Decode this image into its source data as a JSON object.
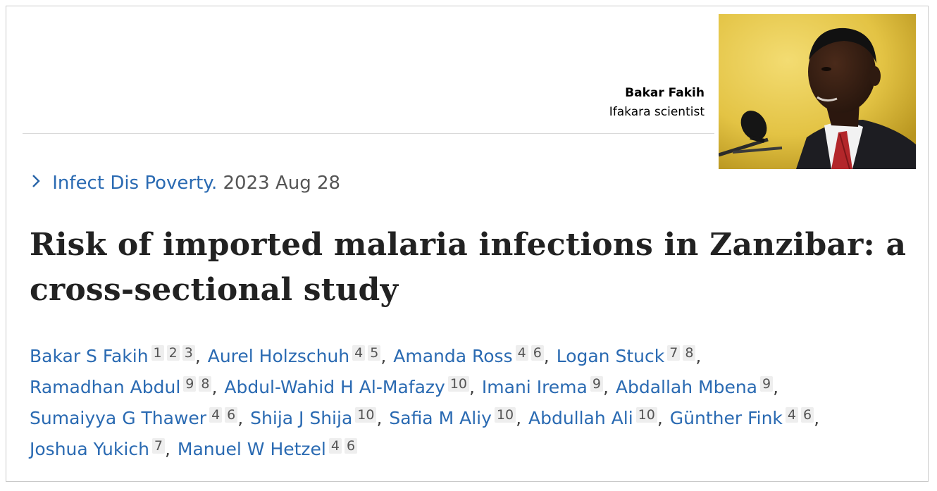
{
  "caption": {
    "name": "Bakar Fakih",
    "role": "Ifakara scientist"
  },
  "photo": {
    "icon": "portrait-photo-icon",
    "background_color": "#e7c94a"
  },
  "journal": {
    "name": "Infect Dis Poverty.",
    "date": "2023 Aug 28"
  },
  "title": {
    "line1": "Risk of imported malaria infections in Zanzibar: a",
    "line2": "cross-sectional study"
  },
  "authors": [
    {
      "name": "Bakar S Fakih",
      "affiliations": [
        "1",
        "2",
        "3"
      ]
    },
    {
      "name": "Aurel Holzschuh",
      "affiliations": [
        "4",
        "5"
      ]
    },
    {
      "name": "Amanda Ross",
      "affiliations": [
        "4",
        "6"
      ]
    },
    {
      "name": "Logan Stuck",
      "affiliations": [
        "7",
        "8"
      ]
    },
    {
      "name": "Ramadhan Abdul",
      "affiliations": [
        "9",
        "8"
      ]
    },
    {
      "name": "Abdul-Wahid H Al-Mafazy",
      "affiliations": [
        "10"
      ]
    },
    {
      "name": "Imani Irema",
      "affiliations": [
        "9"
      ]
    },
    {
      "name": "Abdallah Mbena",
      "affiliations": [
        "9"
      ]
    },
    {
      "name": "Sumaiyya G Thawer",
      "affiliations": [
        "4",
        "6"
      ]
    },
    {
      "name": "Shija J Shija",
      "affiliations": [
        "10"
      ]
    },
    {
      "name": "Safia M Aliy",
      "affiliations": [
        "10"
      ]
    },
    {
      "name": "Abdullah Ali",
      "affiliations": [
        "10"
      ]
    },
    {
      "name": "Günther Fink",
      "affiliations": [
        "4",
        "6"
      ]
    },
    {
      "name": "Joshua Yukich",
      "affiliations": [
        "7"
      ]
    },
    {
      "name": "Manuel W Hetzel",
      "affiliations": [
        "4",
        "6"
      ]
    }
  ]
}
